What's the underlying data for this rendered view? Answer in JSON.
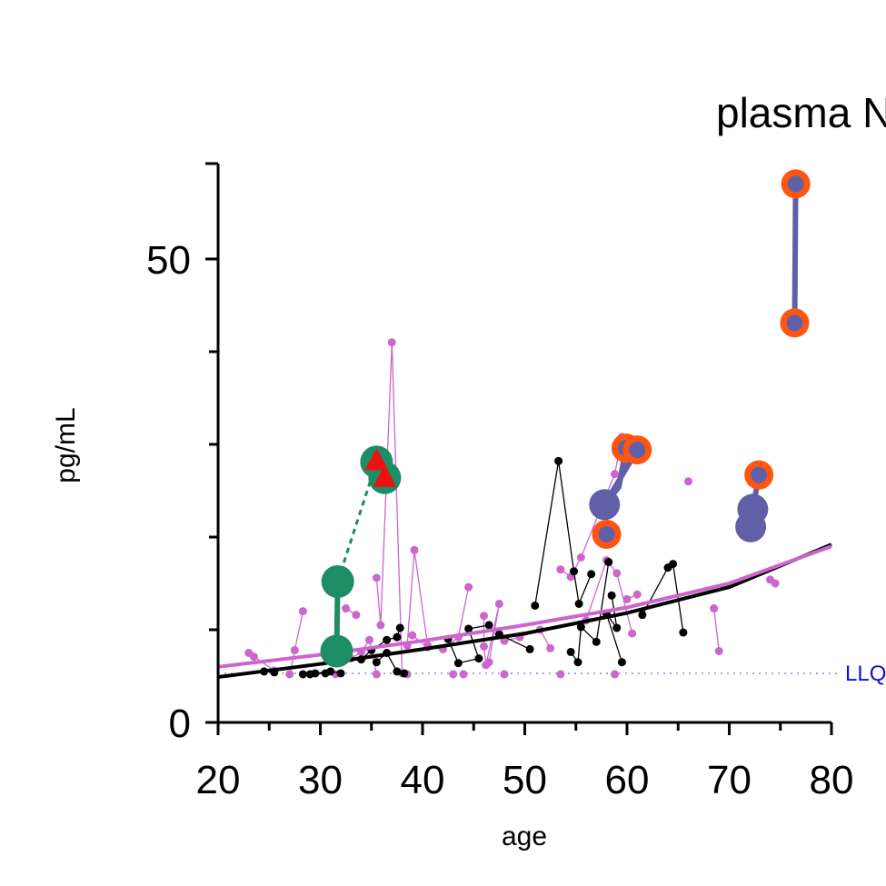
{
  "chart_data": {
    "type": "scatter",
    "title": "plasma N",
    "xlabel": "age",
    "ylabel": "pg/mL",
    "xlim": [
      20,
      80
    ],
    "ylim": [
      0,
      60
    ],
    "x_ticks": [
      20,
      30,
      40,
      50,
      60,
      70,
      80
    ],
    "y_major_ticks": [
      0,
      50
    ],
    "y_minor_ticks": [
      10,
      20,
      30,
      40
    ],
    "llq": {
      "label": "LLQ",
      "value": 5.3,
      "color": "#1010d0"
    },
    "colors": {
      "control": "#000000",
      "carrier": "#cc66cc",
      "green": "#1e8c64",
      "purple": "#6060a8",
      "orange": "#ff5511",
      "red": "#ee1111"
    },
    "fit_lines": [
      {
        "group": "control",
        "color": "#000000",
        "x": [
          20,
          30,
          40,
          50,
          60,
          70,
          80
        ],
        "y": [
          4.9,
          6.3,
          7.9,
          9.6,
          11.8,
          14.6,
          19.2
        ]
      },
      {
        "group": "carrier",
        "color": "#cc66cc",
        "x": [
          20,
          30,
          40,
          50,
          60,
          70,
          80
        ],
        "y": [
          6.0,
          7.3,
          8.8,
          10.5,
          12.4,
          15.0,
          19.0
        ]
      }
    ],
    "control_traces": [
      [
        [
          24.5,
          5.5
        ],
        [
          25.5,
          5.4
        ]
      ],
      [
        [
          29,
          5.2
        ],
        [
          29.5,
          5.3
        ],
        [
          31,
          5.5
        ],
        [
          32,
          5.3
        ]
      ],
      [
        [
          34,
          6.8
        ],
        [
          35,
          7.8
        ],
        [
          36.5,
          8.9
        ],
        [
          37.5,
          9.2
        ],
        [
          37.8,
          10.2
        ]
      ],
      [
        [
          35.5,
          6.5
        ],
        [
          36.5,
          7.5
        ],
        [
          37.5,
          5.5
        ],
        [
          38.2,
          5.3
        ]
      ],
      [
        [
          42.5,
          9.0
        ],
        [
          43.5,
          6.4
        ],
        [
          45.5,
          6.9
        ],
        [
          44.5,
          10.1
        ],
        [
          46.5,
          10.5
        ]
      ],
      [
        [
          51,
          12.6
        ],
        [
          53.3,
          28.2
        ],
        [
          54.8,
          16.3
        ],
        [
          55.3,
          12.8
        ],
        [
          56.5,
          16.0
        ]
      ],
      [
        [
          54.5,
          7.6
        ],
        [
          55.2,
          6.5
        ],
        [
          55.5,
          10.3
        ],
        [
          57,
          8.7
        ],
        [
          58.2,
          17.3
        ]
      ],
      [
        [
          58.5,
          13.7
        ],
        [
          59,
          10.2
        ],
        [
          58,
          11.7
        ],
        [
          59.5,
          6.5
        ]
      ],
      [
        [
          61.5,
          11.6
        ],
        [
          64,
          16.7
        ],
        [
          64.5,
          17.1
        ],
        [
          65.5,
          9.7
        ]
      ],
      [
        [
          28.3,
          5.2
        ],
        [
          30.5,
          5.3
        ]
      ],
      [
        [
          47.5,
          9.5
        ],
        [
          50.5,
          7.9
        ]
      ]
    ],
    "carrier_traces": [
      [
        [
          23,
          7.5
        ],
        [
          23.5,
          7.1
        ],
        [
          25.5,
          5.6
        ]
      ],
      [
        [
          27,
          5.2
        ],
        [
          27.5,
          7.8
        ],
        [
          28.3,
          12.0
        ]
      ],
      [
        [
          33,
          6.9
        ],
        [
          34,
          7.6
        ],
        [
          34.8,
          8.9
        ],
        [
          35.5,
          5.2
        ]
      ],
      [
        [
          32.5,
          12.3
        ],
        [
          33.5,
          11.6
        ]
      ],
      [
        [
          35.5,
          15.6
        ],
        [
          35.9,
          10.5
        ],
        [
          37,
          41.0
        ],
        [
          38,
          5.3
        ],
        [
          38.5,
          5.2
        ]
      ],
      [
        [
          38.5,
          8.3
        ],
        [
          39.2,
          18.6
        ],
        [
          40.5,
          8.3
        ]
      ],
      [
        [
          39,
          9.4
        ],
        [
          40.5,
          8.1
        ],
        [
          42,
          7.9
        ],
        [
          43.5,
          9.2
        ],
        [
          44.5,
          14.6
        ]
      ],
      [
        [
          46,
          11.5
        ],
        [
          46,
          8.2
        ],
        [
          46.2,
          6.2
        ],
        [
          47.5,
          12.8
        ],
        [
          46.5,
          6.5
        ]
      ],
      [
        [
          48,
          8.8
        ],
        [
          49.5,
          9.2
        ],
        [
          51.5,
          10.0
        ],
        [
          52.5,
          8.0
        ]
      ],
      [
        [
          56,
          11.0
        ],
        [
          58,
          17.5
        ],
        [
          59,
          16.1
        ],
        [
          60.5,
          9.6
        ]
      ],
      [
        [
          53.5,
          16.5
        ],
        [
          54.5,
          15.7
        ],
        [
          55.5,
          17.8
        ],
        [
          58.8,
          26.8
        ],
        [
          59.5,
          30.8
        ]
      ],
      [
        [
          60,
          13.3
        ],
        [
          61,
          13.8
        ]
      ],
      [
        [
          66,
          26.0
        ]
      ],
      [
        [
          68.5,
          12.3
        ],
        [
          69,
          7.7
        ]
      ],
      [
        [
          74,
          15.4
        ],
        [
          74.5,
          15.0
        ]
      ],
      [
        [
          58.8,
          5.2
        ]
      ],
      [
        [
          53.5,
          5.2
        ]
      ],
      [
        [
          48,
          5.2
        ]
      ],
      [
        [
          44,
          5.2
        ]
      ],
      [
        [
          43,
          5.2
        ]
      ],
      [
        [
          31.5,
          5.2
        ]
      ]
    ],
    "highlight_groups": [
      {
        "name": "",
        "color": "green",
        "style": "solid",
        "points": [
          [
            31.7,
            15.2
          ],
          [
            31.6,
            7.7
          ]
        ]
      },
      {
        "name": "",
        "color": "green",
        "style": "dashed",
        "points": [
          [
            31.7,
            15.2
          ],
          [
            35.5,
            28.1
          ],
          [
            36.3,
            26.4
          ]
        ]
      },
      {
        "name": "",
        "color": "purple",
        "style": "solid",
        "points": [
          [
            59.9,
            29.6
          ],
          [
            59.2,
            25.4
          ],
          [
            57.8,
            23.5
          ],
          [
            61,
            29.4
          ]
        ]
      },
      {
        "name": "",
        "color": "purple",
        "style": "solid",
        "points": [
          [
            76.5,
            58.1
          ],
          [
            76.4,
            43.1
          ]
        ]
      },
      {
        "name": "",
        "color": "purple",
        "style": "solid",
        "points": [
          [
            72.9,
            26.7
          ],
          [
            72.3,
            23.0
          ],
          [
            72.1,
            21.1
          ]
        ]
      }
    ],
    "green_circles": [
      [
        31.7,
        15.2
      ],
      [
        31.6,
        7.7
      ],
      [
        35.5,
        28.1
      ],
      [
        36.3,
        26.4
      ]
    ],
    "red_triangles": [
      [
        35.5,
        28.2
      ],
      [
        36.3,
        26.4
      ]
    ],
    "purple_circles": [
      [
        57.8,
        23.5
      ],
      [
        72.3,
        23.0
      ],
      [
        72.1,
        21.1
      ]
    ],
    "orange_ringed_purple": [
      [
        58,
        20.3
      ],
      [
        59.9,
        29.6
      ],
      [
        61,
        29.4
      ],
      [
        72.9,
        26.7
      ],
      [
        76.5,
        58.1
      ],
      [
        76.4,
        43.1
      ]
    ]
  }
}
